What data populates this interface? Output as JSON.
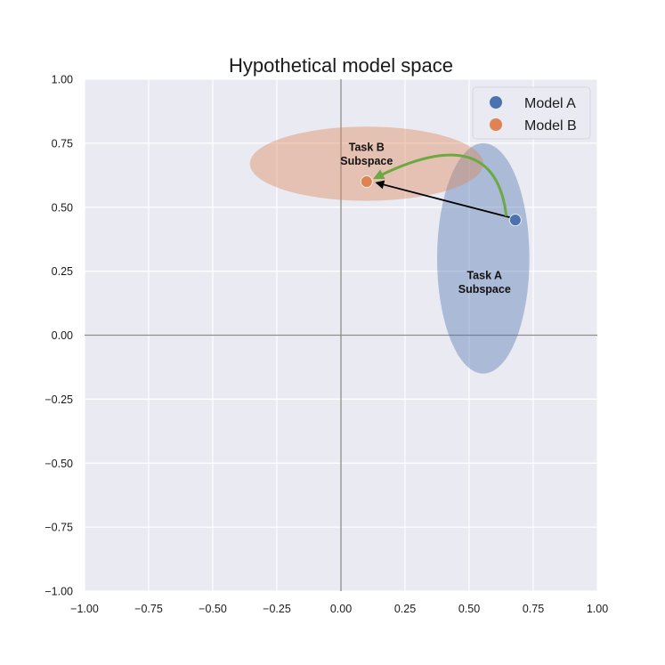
{
  "chart_data": {
    "type": "scatter",
    "title": "Hypothetical model space",
    "xlabel": "",
    "ylabel": "",
    "xlim": [
      -1.0,
      1.0
    ],
    "ylim": [
      -1.0,
      1.0
    ],
    "xticks": [
      -1.0,
      -0.75,
      -0.5,
      -0.25,
      0.0,
      0.25,
      0.5,
      0.75,
      1.0
    ],
    "yticks": [
      -1.0,
      -0.75,
      -0.5,
      -0.25,
      0.0,
      0.25,
      0.5,
      0.75,
      1.0
    ],
    "xtick_labels": [
      "−1.00",
      "−0.75",
      "−0.50",
      "−0.25",
      "0.00",
      "0.25",
      "0.50",
      "0.75",
      "1.00"
    ],
    "ytick_labels": [
      "−1.00",
      "−0.75",
      "−0.50",
      "−0.25",
      "0.00",
      "0.25",
      "0.50",
      "0.75",
      "1.00"
    ],
    "grid": true,
    "background": "#eaeaf2",
    "series": [
      {
        "name": "Model A",
        "x": [
          0.68
        ],
        "y": [
          0.45
        ],
        "color": "#4c72b0"
      },
      {
        "name": "Model B",
        "x": [
          0.1
        ],
        "y": [
          0.6
        ],
        "color": "#dd8452"
      }
    ],
    "regions": [
      {
        "label_lines": [
          "Task A",
          "Subspace"
        ],
        "center": [
          0.555,
          0.3
        ],
        "width": 0.36,
        "height": 0.9,
        "color": "#4c72b0",
        "opacity": 0.4,
        "label_at": [
          0.56,
          0.22
        ]
      },
      {
        "label_lines": [
          "Task B",
          "Subspace"
        ],
        "center": [
          0.1,
          0.67
        ],
        "width": 0.91,
        "height": 0.29,
        "color": "#dd8452",
        "opacity": 0.4,
        "label_at": [
          0.1,
          0.72
        ]
      }
    ],
    "arrows": [
      {
        "name": "straight-arrow",
        "from": [
          0.66,
          0.46
        ],
        "to": [
          0.14,
          0.595
        ],
        "color": "#000000",
        "curved": false
      },
      {
        "name": "curved-arrow",
        "from": [
          0.645,
          0.465
        ],
        "to": [
          0.135,
          0.615
        ],
        "control": [
          0.6,
          0.85
        ],
        "color": "#6aaa40",
        "curved": true
      }
    ],
    "axis_lines": {
      "x0": true,
      "y0": true,
      "color": "#8c8c8c"
    },
    "legend": {
      "position": "top-right",
      "entries": [
        "Model A",
        "Model B"
      ]
    }
  }
}
